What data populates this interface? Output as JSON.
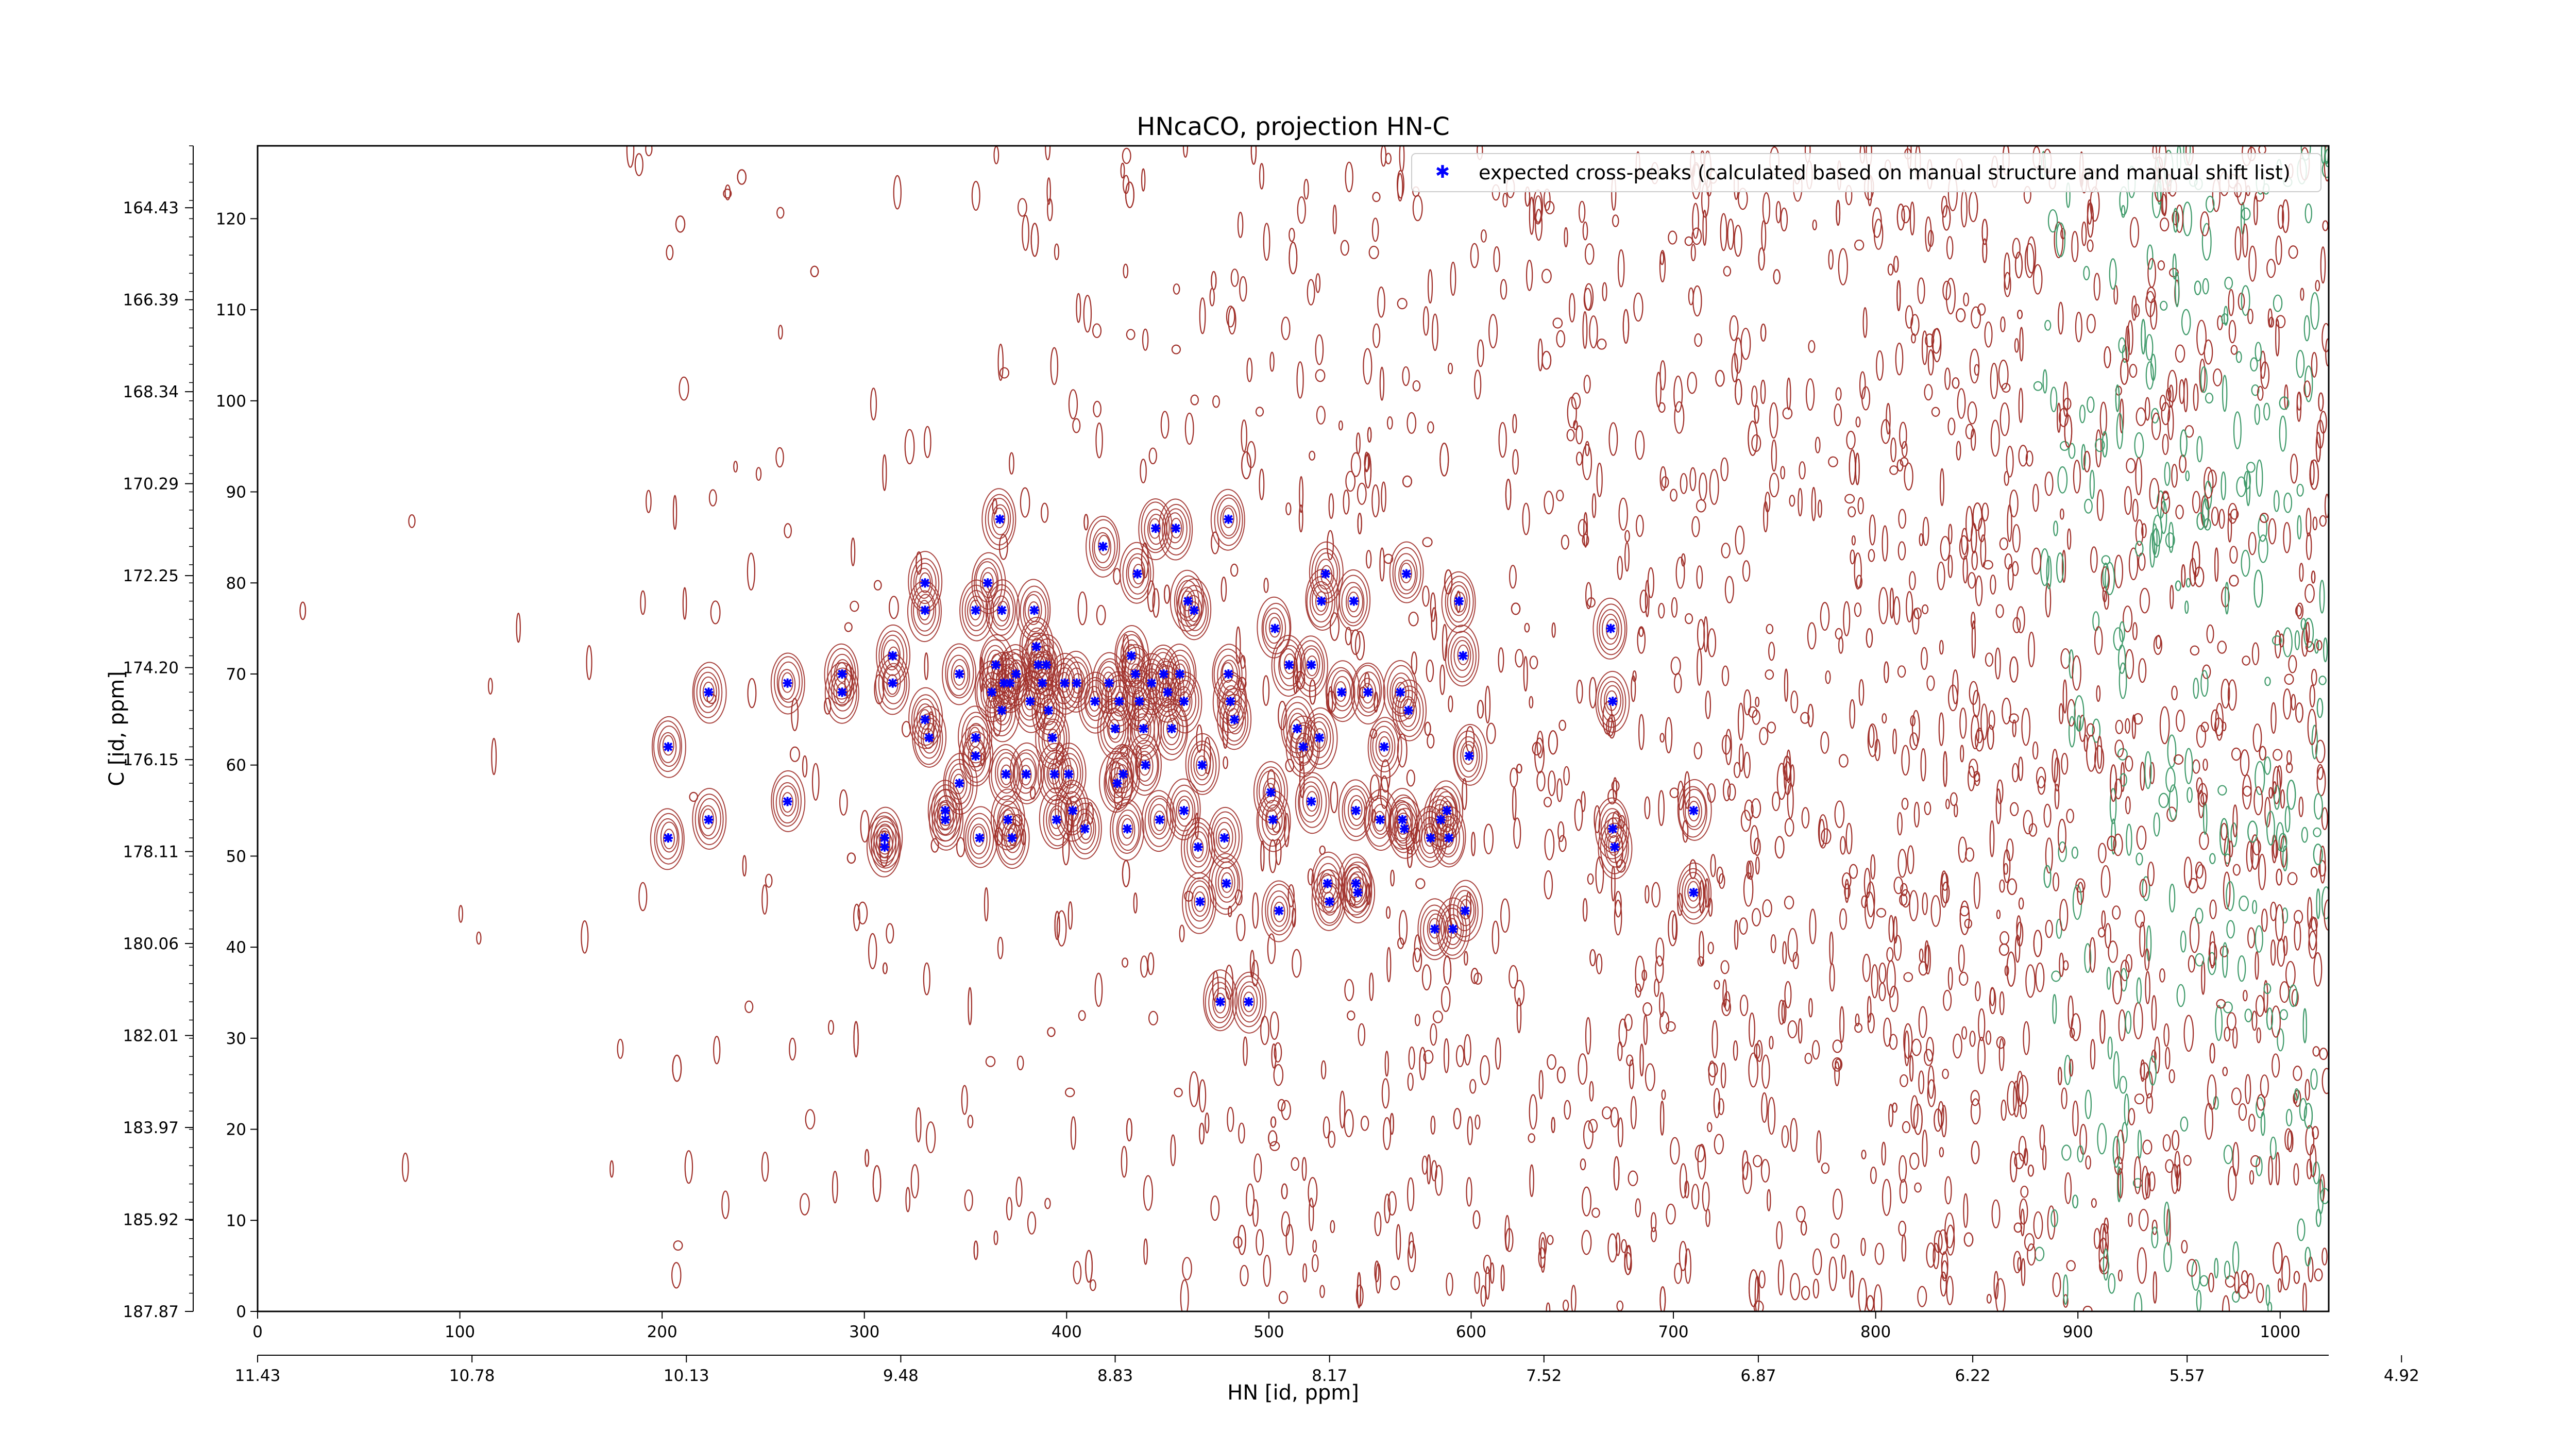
{
  "chart_data": {
    "type": "scatter",
    "title": "HNcaCO, projection HN-C",
    "xlabel": "HN [id, ppm]",
    "ylabel": "C [id, ppm]",
    "xlim": [
      0,
      1024
    ],
    "ylim": [
      0,
      128
    ],
    "x_ticks": [
      0,
      100,
      200,
      300,
      400,
      500,
      600,
      700,
      800,
      900,
      1000
    ],
    "y_ticks": [
      0,
      10,
      20,
      30,
      40,
      50,
      60,
      70,
      80,
      90,
      100,
      110,
      120
    ],
    "secondary_x_axis": {
      "label": "HN [id, ppm]",
      "ticks": [
        {
          "at": 0,
          "label": "11.43"
        },
        {
          "at": 106,
          "label": "10.78"
        },
        {
          "at": 212,
          "label": "10.13"
        },
        {
          "at": 318,
          "label": "9.48"
        },
        {
          "at": 424,
          "label": "8.83"
        },
        {
          "at": 530,
          "label": "8.17"
        },
        {
          "at": 636,
          "label": "7.52"
        },
        {
          "at": 742,
          "label": "6.87"
        },
        {
          "at": 848,
          "label": "6.22"
        },
        {
          "at": 954,
          "label": "5.57"
        },
        {
          "at": 1060,
          "label": "4.92"
        }
      ]
    },
    "secondary_y_axis": {
      "label": "C [id, ppm]",
      "ticks": [
        {
          "at": 0,
          "label": "187.87"
        },
        {
          "at": 10.1,
          "label": "185.92"
        },
        {
          "at": 20.2,
          "label": "183.97"
        },
        {
          "at": 30.3,
          "label": "182.01"
        },
        {
          "at": 40.4,
          "label": "180.06"
        },
        {
          "at": 50.5,
          "label": "178.11"
        },
        {
          "at": 60.6,
          "label": "176.15"
        },
        {
          "at": 70.7,
          "label": "174.20"
        },
        {
          "at": 80.8,
          "label": "172.25"
        },
        {
          "at": 90.9,
          "label": "170.29"
        },
        {
          "at": 101.0,
          "label": "168.34"
        },
        {
          "at": 111.1,
          "label": "166.39"
        },
        {
          "at": 121.2,
          "label": "164.43"
        }
      ]
    },
    "legend": {
      "placement": "top-right",
      "entries": [
        "expected cross-peaks (calculated based on manual structure and manual shift list)"
      ]
    },
    "colors": {
      "marker": "#0000ff",
      "contour_positive": "#a0302a",
      "contour_negative": "#3f9a6a"
    },
    "series": [
      {
        "name": "expected cross-peaks (calculated based on manual structure and manual shift list)",
        "marker": "x",
        "points": [
          [
            203,
            62
          ],
          [
            203,
            52
          ],
          [
            223,
            68
          ],
          [
            223,
            54
          ],
          [
            262,
            69
          ],
          [
            262,
            56
          ],
          [
            289,
            70
          ],
          [
            289,
            68
          ],
          [
            314,
            72
          ],
          [
            314,
            69
          ],
          [
            310,
            51
          ],
          [
            310,
            52
          ],
          [
            330,
            80
          ],
          [
            330,
            77
          ],
          [
            330,
            65
          ],
          [
            332,
            63
          ],
          [
            340,
            55
          ],
          [
            340,
            54
          ],
          [
            347,
            70
          ],
          [
            347,
            58
          ],
          [
            355,
            77
          ],
          [
            355,
            63
          ],
          [
            355,
            61
          ],
          [
            357,
            52
          ],
          [
            361,
            80
          ],
          [
            363,
            68
          ],
          [
            365,
            71
          ],
          [
            367,
            87
          ],
          [
            368,
            77
          ],
          [
            369,
            69
          ],
          [
            368,
            66
          ],
          [
            370,
            59
          ],
          [
            371,
            54
          ],
          [
            373,
            52
          ],
          [
            372,
            69
          ],
          [
            375,
            70
          ],
          [
            380,
            59
          ],
          [
            382,
            67
          ],
          [
            384,
            77
          ],
          [
            385,
            73
          ],
          [
            386,
            71
          ],
          [
            388,
            69
          ],
          [
            390,
            71
          ],
          [
            391,
            66
          ],
          [
            393,
            63
          ],
          [
            394,
            59
          ],
          [
            395,
            54
          ],
          [
            399,
            69
          ],
          [
            401,
            59
          ],
          [
            403,
            55
          ],
          [
            405,
            69
          ],
          [
            409,
            53
          ],
          [
            414,
            67
          ],
          [
            418,
            84
          ],
          [
            421,
            69
          ],
          [
            424,
            64
          ],
          [
            425,
            58
          ],
          [
            426,
            67
          ],
          [
            428,
            59
          ],
          [
            430,
            53
          ],
          [
            432,
            72
          ],
          [
            434,
            70
          ],
          [
            436,
            67
          ],
          [
            438,
            64
          ],
          [
            435,
            81
          ],
          [
            439,
            60
          ],
          [
            442,
            69
          ],
          [
            444,
            86
          ],
          [
            446,
            54
          ],
          [
            448,
            70
          ],
          [
            450,
            68
          ],
          [
            452,
            64
          ],
          [
            454,
            86
          ],
          [
            456,
            70
          ],
          [
            458,
            55
          ],
          [
            458,
            67
          ],
          [
            460,
            78
          ],
          [
            463,
            77
          ],
          [
            465,
            51
          ],
          [
            466,
            45
          ],
          [
            467,
            60
          ],
          [
            476,
            34
          ],
          [
            478,
            52
          ],
          [
            479,
            47
          ],
          [
            480,
            70
          ],
          [
            481,
            67
          ],
          [
            483,
            65
          ],
          [
            480,
            87
          ],
          [
            490,
            34
          ],
          [
            501,
            57
          ],
          [
            502,
            54
          ],
          [
            503,
            75
          ],
          [
            505,
            44
          ],
          [
            510,
            71
          ],
          [
            514,
            64
          ],
          [
            517,
            62
          ],
          [
            521,
            71
          ],
          [
            521,
            56
          ],
          [
            525,
            63
          ],
          [
            526,
            78
          ],
          [
            528,
            81
          ],
          [
            529,
            47
          ],
          [
            530,
            45
          ],
          [
            536,
            68
          ],
          [
            542,
            78
          ],
          [
            543,
            55
          ],
          [
            543,
            47
          ],
          [
            544,
            46
          ],
          [
            549,
            68
          ],
          [
            555,
            54
          ],
          [
            557,
            62
          ],
          [
            565,
            68
          ],
          [
            566,
            54
          ],
          [
            567,
            53
          ],
          [
            568,
            81
          ],
          [
            569,
            66
          ],
          [
            580,
            52
          ],
          [
            582,
            42
          ],
          [
            585,
            54
          ],
          [
            588,
            55
          ],
          [
            589,
            52
          ],
          [
            591,
            42
          ],
          [
            594,
            78
          ],
          [
            596,
            72
          ],
          [
            597,
            44
          ],
          [
            599,
            61
          ],
          [
            669,
            75
          ],
          [
            670,
            67
          ],
          [
            670,
            53
          ],
          [
            671,
            51
          ],
          [
            710,
            55
          ],
          [
            710,
            46
          ]
        ]
      }
    ]
  }
}
